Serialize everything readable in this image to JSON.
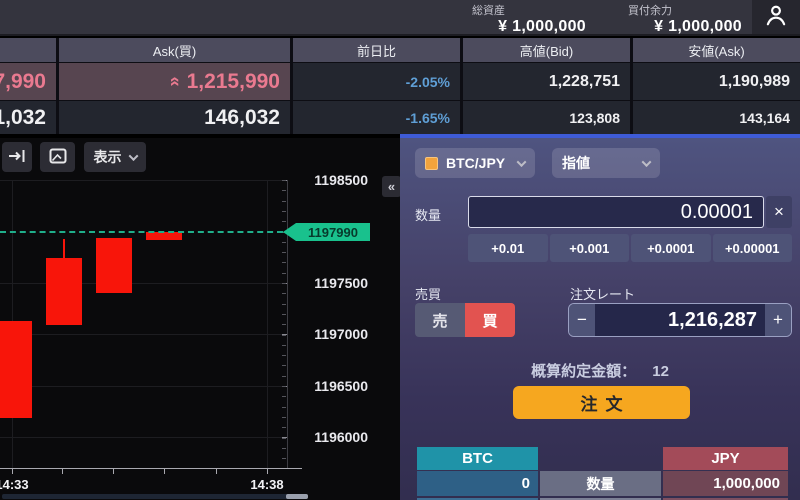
{
  "top_bar": {
    "total_assets_label": "総資産",
    "total_assets_value": "¥ 1,000,000",
    "buying_power_label": "買付余力",
    "buying_power_value": "¥ 1,000,000"
  },
  "ticker": {
    "headers": [
      "",
      "Ask(買)",
      "前日比",
      "高値(Bid)",
      "安値(Ask)"
    ],
    "rows": [
      {
        "bid_partial": "7,990",
        "ask": "1,215,990",
        "change": "-2.05%",
        "high": "1,228,751",
        "low": "1,190,989",
        "highlighted": true
      },
      {
        "bid_partial": "1,032",
        "ask": "146,032",
        "change": "-1.65%",
        "high": "123,808",
        "low": "143,164",
        "highlighted": false
      }
    ]
  },
  "chart": {
    "toolbar": {
      "show_label": "表示"
    },
    "collapse_glyph": "«",
    "chart_data": {
      "type": "candlestick",
      "x": [
        "14:33",
        "14:34",
        "14:35",
        "14:36"
      ],
      "candles": [
        {
          "time": "14:33",
          "open": 1197130,
          "high": 1197130,
          "low": 1196185,
          "close": 1196185
        },
        {
          "time": "14:34",
          "open": 1197740,
          "high": 1197925,
          "low": 1197090,
          "close": 1197090
        },
        {
          "time": "14:35",
          "open": 1197935,
          "high": 1197935,
          "low": 1197400,
          "close": 1197400
        },
        {
          "time": "14:36",
          "open": 1197995,
          "high": 1197995,
          "low": 1197915,
          "close": 1197915
        }
      ],
      "current_price": 1197990,
      "y_axis_ticks": [
        1198500,
        1197500,
        1197000,
        1196500,
        1196000
      ],
      "ylim": [
        1195700,
        1198500
      ],
      "x_labels_shown": [
        "14:33",
        "14:38"
      ],
      "grid": true,
      "candle_color_down": "#f8150a",
      "current_price_color": "#19c18d"
    }
  },
  "order_panel": {
    "pair": "BTC/JPY",
    "order_type": "指値",
    "quantity_label": "数量",
    "quantity_value": "0.00001",
    "clear_glyph": "×",
    "increments": [
      "+0.01",
      "+0.001",
      "+0.0001",
      "+0.00001"
    ],
    "side_label": "売買",
    "sell_label": "売",
    "buy_label": "買",
    "rate_label": "注文レート",
    "rate_value": "1,216,287",
    "minus_glyph": "−",
    "plus_glyph": "+",
    "estimate_label": "概算約定金額：",
    "estimate_value": "12",
    "submit_label": "注文",
    "balances": {
      "btc_header": "BTC",
      "btc_value": "0",
      "qty_label": "数量",
      "jpy_header": "JPY",
      "jpy_value": "1,000,000"
    }
  },
  "colors": {
    "accent_blue": "#3e5bd7",
    "candle_red": "#f8150a",
    "tag_green": "#19c18d",
    "buy_red": "#e25350",
    "submit_orange": "#f6a71f",
    "btc_teal": "#1f93a8",
    "jpy_rose": "#a34b59",
    "highlight_row": "#574550",
    "pink_price": "#ea7a90",
    "change_blue": "#5f9fd6"
  }
}
